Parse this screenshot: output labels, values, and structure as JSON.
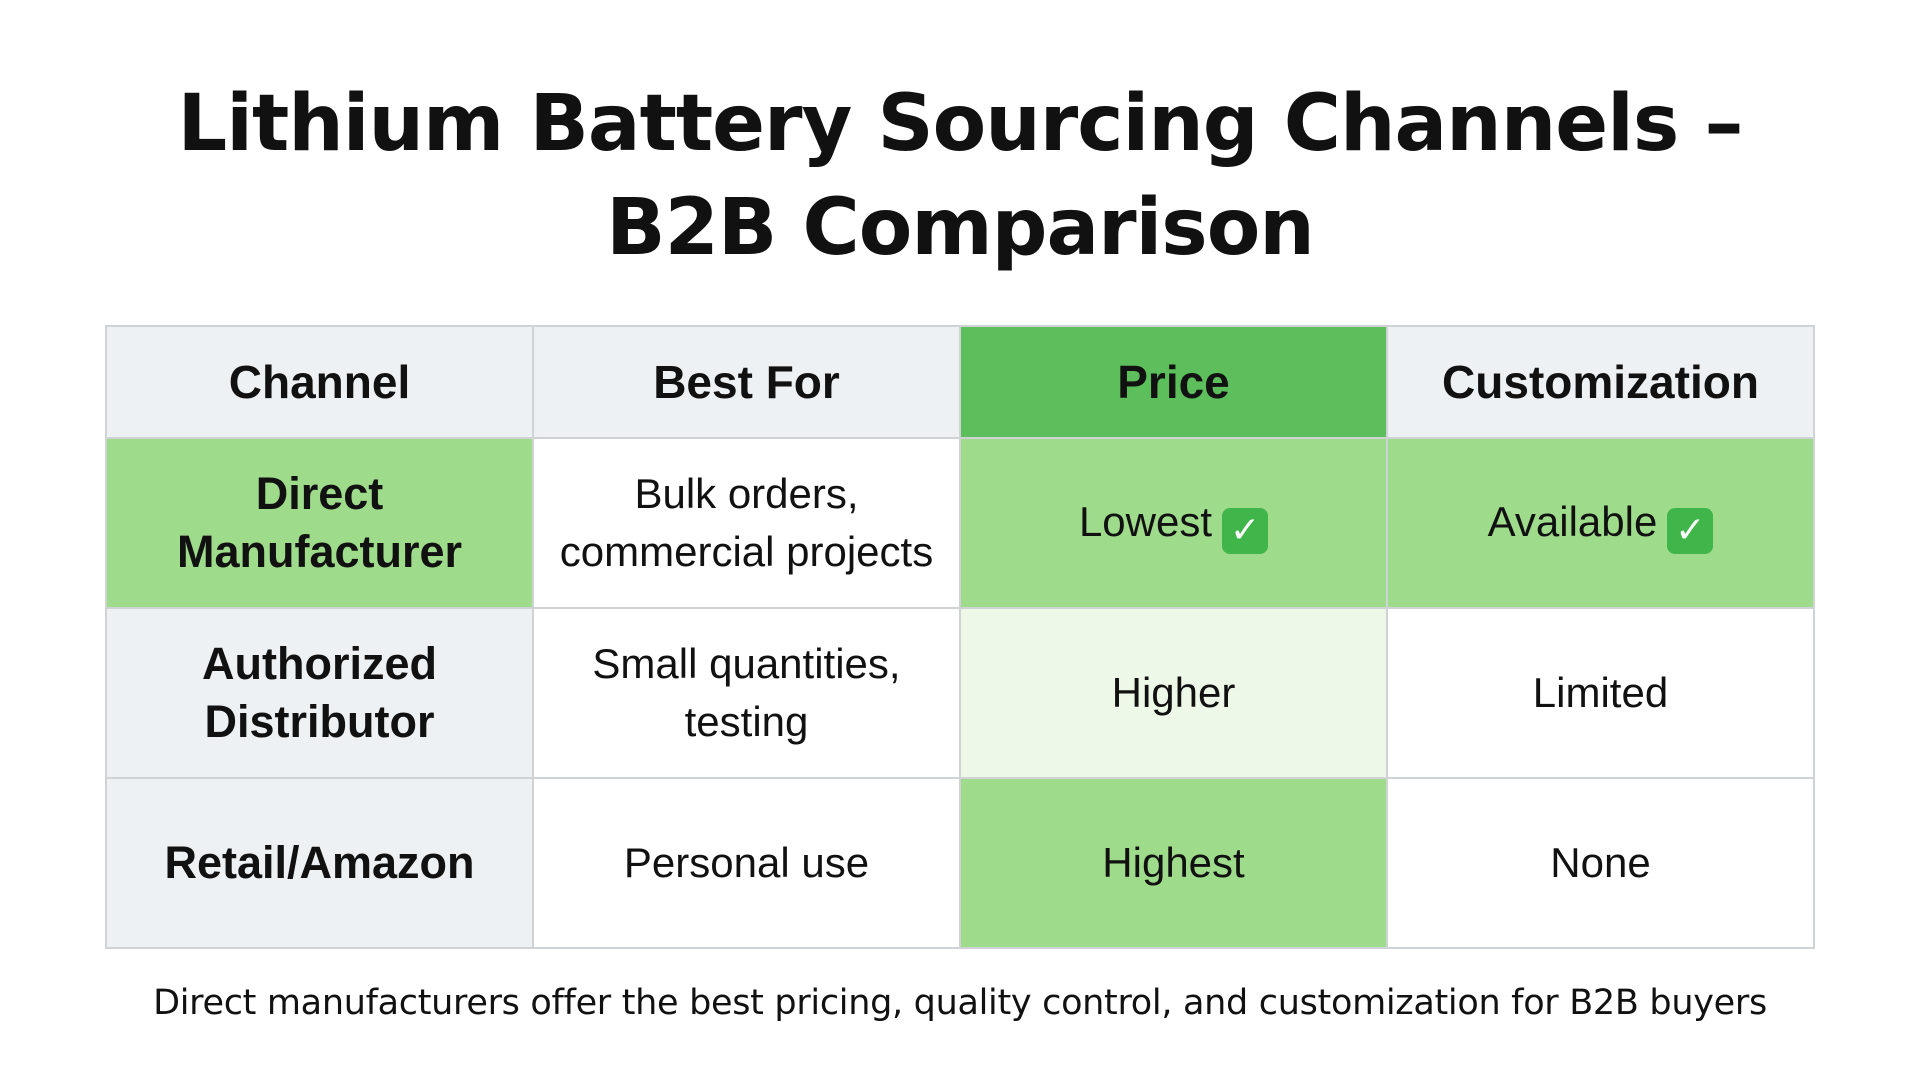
{
  "title": {
    "line1": "Lithium Battery Sourcing Channels –",
    "line2": "B2B Comparison"
  },
  "table": {
    "headers": [
      "Channel",
      "Best For",
      "Price",
      "Customization"
    ],
    "rows": [
      {
        "channel": "Direct Manufacturer",
        "best_for": "Bulk orders, commercial projects",
        "price": "Lowest",
        "price_check": "✓",
        "customization": "Available",
        "customization_check": "✓"
      },
      {
        "channel": "Authorized Distributor",
        "best_for": "Small quantities, testing",
        "price": "Higher",
        "customization": "Limited"
      },
      {
        "channel": "Retail/Amazon",
        "best_for": "Personal use",
        "price": "Highest",
        "customization": "None"
      }
    ]
  },
  "footnote": "Direct manufacturers offer the best pricing, quality control, and customization for B2B buyers",
  "colors": {
    "header_price": "#5cbf5c",
    "highlight_green": "#9edb8b",
    "light_green": "#eef8e8",
    "neutral_gray": "#eef1f3",
    "check_badge": "#3fb54a"
  },
  "icons": {
    "check": "check-mark-icon"
  }
}
